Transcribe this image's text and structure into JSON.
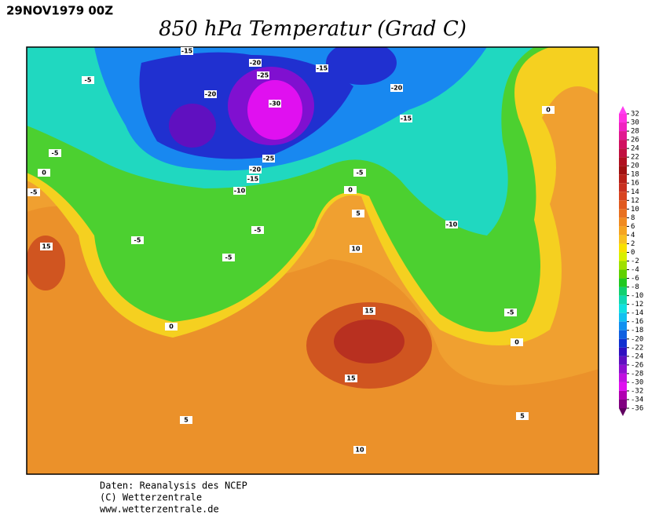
{
  "header": {
    "date": "29NOV1979 00Z",
    "title": "850 hPa Temperatur (Grad C)"
  },
  "contour_labels": [
    "-15",
    "-20",
    "-15",
    "-5",
    "-25",
    "-20",
    "-30",
    "-20",
    "0",
    "-15",
    "-5",
    "-25",
    "-20",
    "-15",
    "0",
    "-5",
    "-10",
    "-5",
    "0",
    "5",
    "-10",
    "-5",
    "15",
    "-5",
    "10",
    "-5",
    "15",
    "-5",
    "0",
    "0",
    "15",
    "5",
    "5",
    "10"
  ],
  "colorbar": {
    "ticks": [
      32,
      30,
      28,
      26,
      24,
      22,
      20,
      18,
      16,
      14,
      12,
      10,
      8,
      6,
      4,
      2,
      0,
      -2,
      -4,
      -6,
      -8,
      -10,
      -12,
      -14,
      -16,
      -18,
      -20,
      -22,
      -24,
      -26,
      -28,
      -30,
      -32,
      -34,
      -36
    ]
  },
  "footer": {
    "lines": [
      "Daten: Reanalysis des NCEP",
      "(C) Wetterzentrale",
      "www.wetterzentrale.de"
    ]
  }
}
